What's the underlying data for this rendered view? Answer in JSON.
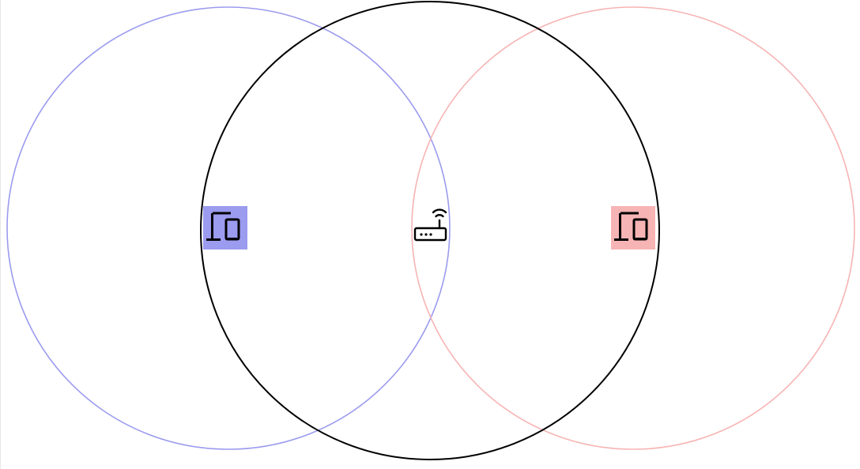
{
  "diagram": {
    "nodes": [
      {
        "id": "left-station",
        "icon": "devices-icon",
        "role": "station",
        "color": "#9b9bef",
        "range_color": "#9b9bef"
      },
      {
        "id": "access-point",
        "icon": "router-icon",
        "role": "access-point",
        "color": "#000000",
        "range_color": "#000000"
      },
      {
        "id": "right-station",
        "icon": "devices-icon",
        "role": "station",
        "color": "#f7b4b4",
        "range_color": "#f7b4b4"
      }
    ],
    "ranges": [
      {
        "node": "left-station",
        "style": "transmission-range"
      },
      {
        "node": "access-point",
        "style": "transmission-range"
      },
      {
        "node": "right-station",
        "style": "transmission-range"
      }
    ]
  }
}
